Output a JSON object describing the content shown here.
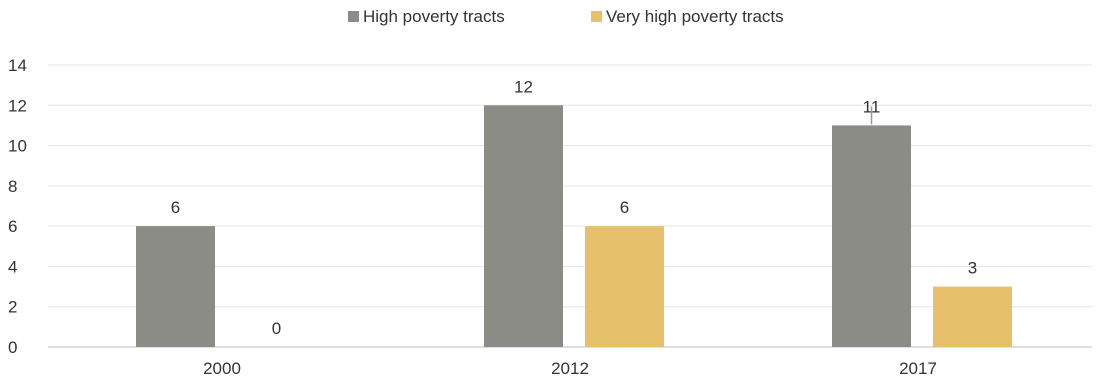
{
  "chart_data": {
    "type": "bar",
    "title": "",
    "xlabel": "",
    "ylabel": "",
    "categories": [
      "2000",
      "2012",
      "2017"
    ],
    "series": [
      {
        "name": "High poverty tracts",
        "values": [
          6,
          12,
          11
        ],
        "color": "#8b8c85"
      },
      {
        "name": "Very high poverty tracts",
        "values": [
          0,
          6,
          3
        ],
        "color": "#e6c06a"
      }
    ],
    "ylim": [
      0,
      14
    ],
    "yticks": [
      "0",
      "2",
      "4",
      "6",
      "8",
      "10",
      "12",
      "14"
    ],
    "grid": true,
    "legend": "top-center",
    "data_labels": true
  }
}
